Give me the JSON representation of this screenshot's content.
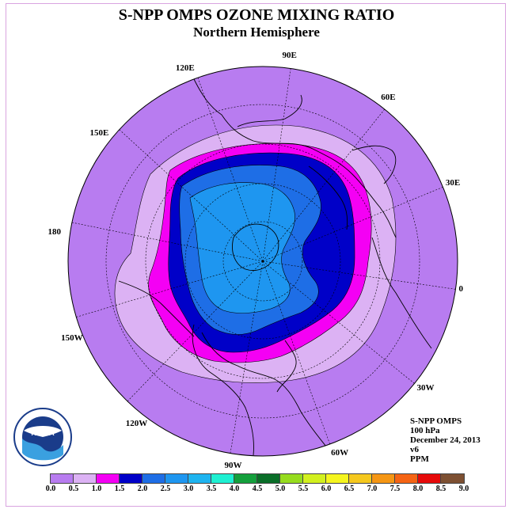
{
  "title": "S-NPP OMPS OZONE MIXING RATIO",
  "subtitle": "Northern Hemisphere",
  "longitude_labels": [
    {
      "text": "90E",
      "lon": 90
    },
    {
      "text": "60E",
      "lon": 60
    },
    {
      "text": "30E",
      "lon": 30
    },
    {
      "text": "0",
      "lon": 0
    },
    {
      "text": "30W",
      "lon": -30
    },
    {
      "text": "60W",
      "lon": -60
    },
    {
      "text": "90W",
      "lon": -90
    },
    {
      "text": "120W",
      "lon": -120
    },
    {
      "text": "150W",
      "lon": -150
    },
    {
      "text": "180",
      "lon": 180
    },
    {
      "text": "150E",
      "lon": 150
    },
    {
      "text": "120E",
      "lon": 120
    }
  ],
  "info": {
    "instrument": "S-NPP OMPS",
    "level": "100 hPa",
    "date": "December 24, 2013",
    "version": "v6",
    "units": "PPM"
  },
  "logo_text": "NOAA",
  "colorbar": {
    "labels": [
      "0.0",
      "0.5",
      "1.0",
      "1.5",
      "2.0",
      "2.5",
      "3.0",
      "3.5",
      "4.0",
      "4.5",
      "5.0",
      "5.5",
      "6.0",
      "6.5",
      "7.0",
      "7.5",
      "8.0",
      "8.5",
      "9.0"
    ],
    "colors": [
      "#b87cf0",
      "#dcb2f4",
      "#f400f4",
      "#0000c8",
      "#1e6ee6",
      "#1e96f0",
      "#1eb4f0",
      "#1ef0d2",
      "#14a03c",
      "#0a6e28",
      "#96dc1e",
      "#d2f01e",
      "#f5f51e",
      "#f5c81e",
      "#f59614",
      "#f56414",
      "#e60a0a",
      "#7d5032"
    ]
  },
  "map_data": {
    "projection": "north-polar-stereographic",
    "background_level_color": "#b87cf0",
    "contour_levels": [
      "0.5",
      "1.0",
      "1.5",
      "2.0",
      "2.5"
    ]
  }
}
